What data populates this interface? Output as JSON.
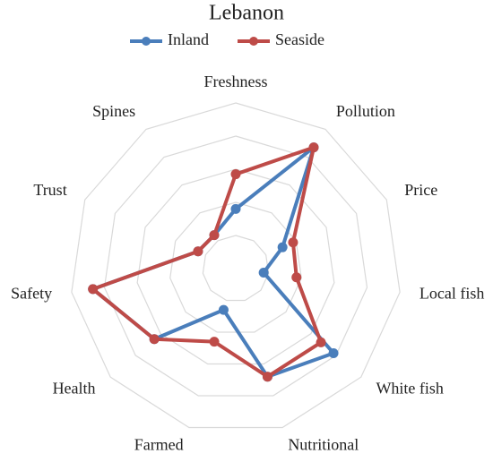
{
  "chart_data": {
    "type": "radar",
    "title": "Lebanon",
    "categories": [
      "Freshness",
      "Pollution",
      "Price",
      "Local fish",
      "White fish",
      "Nutritional",
      "Farmed",
      "Health",
      "Safety",
      "Trust",
      "Spines"
    ],
    "series": [
      {
        "name": "Inland",
        "color": "#4a7ebb",
        "values": [
          1.8,
          4.35,
          1.55,
          0.85,
          3.9,
          3.4,
          1.3,
          3.25,
          4.35,
          1.25,
          1.2
        ]
      },
      {
        "name": "Seaside",
        "color": "#be4b48",
        "values": [
          2.85,
          4.35,
          1.9,
          1.85,
          3.4,
          3.4,
          2.3,
          3.25,
          4.35,
          1.25,
          1.2
        ]
      }
    ],
    "ylim": [
      0,
      5
    ],
    "yticks": [
      1,
      2,
      3,
      4,
      5
    ],
    "grid": true
  }
}
